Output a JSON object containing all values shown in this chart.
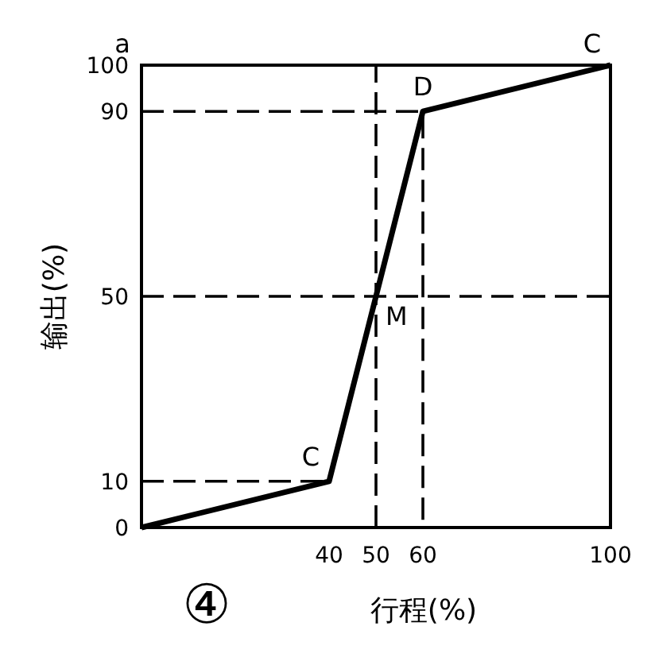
{
  "chart_data": {
    "type": "line",
    "xlabel": "行程(%)",
    "ylabel": "输出(%)",
    "xlim": [
      0,
      100
    ],
    "ylim": [
      0,
      100
    ],
    "xticks": [
      40,
      50,
      60,
      100
    ],
    "yticks": [
      0,
      10,
      50,
      90,
      100
    ],
    "series": [
      {
        "x": [
          0,
          40,
          60,
          100
        ],
        "values": [
          0,
          10,
          90,
          100
        ],
        "color": "#000000",
        "line_style": "solid"
      },
      {
        "x": [
          0,
          60,
          60
        ],
        "values": [
          90,
          90,
          0
        ],
        "color": "#000000",
        "line_style": "dashed"
      },
      {
        "x": [
          0,
          40
        ],
        "values": [
          10,
          10
        ],
        "color": "#000000",
        "line_style": "dashed"
      },
      {
        "x": [
          0,
          100
        ],
        "values": [
          50,
          50
        ],
        "color": "#000000",
        "line_style": "dashed"
      },
      {
        "x": [
          50,
          50
        ],
        "values": [
          0,
          100
        ],
        "color": "#000000",
        "line_style": "dashed"
      }
    ],
    "annotations": [
      "a",
      {
        "text": "C",
        "x": 100,
        "y": 100
      },
      {
        "text": "D",
        "x": 60,
        "y": 90
      },
      {
        "text": "M",
        "x": 50,
        "y": 50
      },
      {
        "text": "C",
        "x": 40,
        "y": 10
      },
      "④"
    ]
  }
}
